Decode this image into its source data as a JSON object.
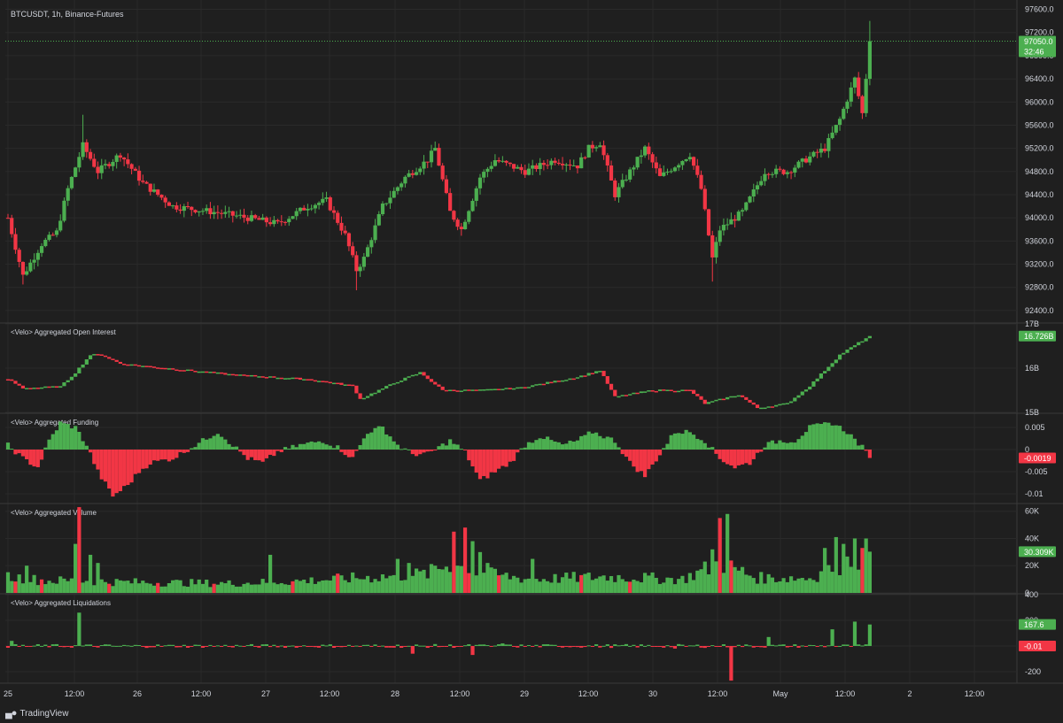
{
  "symbol_title": "BTCUSDT, 1h, Binance-Futures",
  "brand": "TradingView",
  "colors": {
    "up": "#4caf50",
    "down": "#f23645",
    "bg": "#1f1f1f",
    "grid": "#2a2a2a",
    "text": "#d1d4dc"
  },
  "time_axis": {
    "labels": [
      "25",
      "12:00",
      "26",
      "12:00",
      "27",
      "12:00",
      "28",
      "12:00",
      "29",
      "12:00",
      "30",
      "12:00",
      "May",
      "12:00",
      "2",
      "12:00"
    ]
  },
  "chart_data": [
    {
      "type": "candlestick",
      "title": "BTCUSDT, 1h, Binance-Futures",
      "ylim": [
        92200,
        97700
      ],
      "y_ticks": [
        "97600.0",
        "97200.0",
        "96800.0",
        "96400.0",
        "96000.0",
        "95600.0",
        "95200.0",
        "94800.0",
        "94400.0",
        "94000.0",
        "93600.0",
        "93200.0",
        "92800.0",
        "92400.0"
      ],
      "last_price": "97050.0",
      "countdown": "32:46",
      "waypoints": [
        [
          0,
          94000
        ],
        [
          4,
          93000
        ],
        [
          9,
          93550
        ],
        [
          13,
          93750
        ],
        [
          16,
          94500
        ],
        [
          20,
          95250
        ],
        [
          24,
          94800
        ],
        [
          30,
          95100
        ],
        [
          36,
          94600
        ],
        [
          44,
          94200
        ],
        [
          55,
          94100
        ],
        [
          64,
          94000
        ],
        [
          72,
          93900
        ],
        [
          80,
          94200
        ],
        [
          85,
          94300
        ],
        [
          90,
          93700
        ],
        [
          93,
          93100
        ],
        [
          95,
          93300
        ],
        [
          100,
          94200
        ],
        [
          106,
          94700
        ],
        [
          112,
          95000
        ],
        [
          114,
          95200
        ],
        [
          118,
          94100
        ],
        [
          121,
          93800
        ],
        [
          126,
          94700
        ],
        [
          130,
          95000
        ],
        [
          138,
          94800
        ],
        [
          146,
          95000
        ],
        [
          152,
          94900
        ],
        [
          155,
          95200
        ],
        [
          158,
          95300
        ],
        [
          162,
          94400
        ],
        [
          166,
          94800
        ],
        [
          170,
          95200
        ],
        [
          174,
          94700
        ],
        [
          182,
          95100
        ],
        [
          185,
          94500
        ],
        [
          188,
          93300
        ],
        [
          190,
          93800
        ],
        [
          196,
          94100
        ],
        [
          202,
          94800
        ],
        [
          208,
          94800
        ],
        [
          214,
          95050
        ],
        [
          218,
          95200
        ],
        [
          222,
          95700
        ],
        [
          226,
          96400
        ],
        [
          228,
          95800
        ],
        [
          230,
          97050
        ]
      ],
      "highs": {
        "230": 97400,
        "20": 95780
      },
      "lows": {
        "93": 92750,
        "188": 92900,
        "4": 92850
      }
    },
    {
      "type": "bar",
      "title": "<Velo> Aggregated Open Interest",
      "ylim": [
        15.0,
        17.0
      ],
      "y_ticks": [
        "17B",
        "16B",
        "15B"
      ],
      "last_value": "16.726B",
      "waypoints": [
        [
          0,
          15.75
        ],
        [
          4,
          15.55
        ],
        [
          14,
          15.58
        ],
        [
          18,
          15.9
        ],
        [
          22,
          16.3
        ],
        [
          25,
          16.3
        ],
        [
          30,
          16.1
        ],
        [
          42,
          16.0
        ],
        [
          60,
          15.85
        ],
        [
          80,
          15.75
        ],
        [
          92,
          15.6
        ],
        [
          94,
          15.3
        ],
        [
          104,
          15.7
        ],
        [
          110,
          15.9
        ],
        [
          116,
          15.5
        ],
        [
          126,
          15.5
        ],
        [
          136,
          15.55
        ],
        [
          146,
          15.7
        ],
        [
          152,
          15.8
        ],
        [
          158,
          15.95
        ],
        [
          162,
          15.35
        ],
        [
          172,
          15.5
        ],
        [
          182,
          15.5
        ],
        [
          186,
          15.2
        ],
        [
          195,
          15.4
        ],
        [
          200,
          15.1
        ],
        [
          208,
          15.2
        ],
        [
          214,
          15.6
        ],
        [
          222,
          16.3
        ],
        [
          230,
          16.73
        ]
      ]
    },
    {
      "type": "bar",
      "title": "<Velo> Aggregated Funding",
      "ylim": [
        -0.012,
        0.008
      ],
      "y_ticks": [
        "0.005",
        "0",
        "-0.005",
        "-0.01"
      ],
      "last_value": "-0.0019",
      "waypoints": [
        [
          0,
          0.001
        ],
        [
          4,
          -0.002
        ],
        [
          8,
          -0.004
        ],
        [
          11,
          0.002
        ],
        [
          14,
          0.006
        ],
        [
          18,
          0.005
        ],
        [
          21,
          0.001
        ],
        [
          24,
          -0.005
        ],
        [
          28,
          -0.0105
        ],
        [
          32,
          -0.008
        ],
        [
          35,
          -0.005
        ],
        [
          38,
          -0.003
        ],
        [
          44,
          -0.002
        ],
        [
          50,
          0.001
        ],
        [
          56,
          0.004
        ],
        [
          60,
          0.001
        ],
        [
          64,
          -0.002
        ],
        [
          68,
          -0.003
        ],
        [
          72,
          -0.0005
        ],
        [
          78,
          0.001
        ],
        [
          84,
          0.002
        ],
        [
          88,
          0.0005
        ],
        [
          92,
          -0.002
        ],
        [
          96,
          0.004
        ],
        [
          100,
          0.005
        ],
        [
          104,
          0.001
        ],
        [
          108,
          -0.001
        ],
        [
          112,
          -0.001
        ],
        [
          118,
          0.002
        ],
        [
          122,
          -0.0005
        ],
        [
          126,
          -0.007
        ],
        [
          130,
          -0.005
        ],
        [
          134,
          -0.003
        ],
        [
          138,
          0.001
        ],
        [
          142,
          0.003
        ],
        [
          148,
          0.001
        ],
        [
          152,
          0.002
        ],
        [
          156,
          0.004
        ],
        [
          162,
          0.002
        ],
        [
          166,
          -0.003
        ],
        [
          170,
          -0.006
        ],
        [
          174,
          -0.001
        ],
        [
          178,
          0.004
        ],
        [
          182,
          0.004
        ],
        [
          186,
          0.002
        ],
        [
          190,
          -0.002
        ],
        [
          194,
          -0.004
        ],
        [
          198,
          -0.003
        ],
        [
          202,
          0.001
        ],
        [
          206,
          0.002
        ],
        [
          210,
          0.002
        ],
        [
          214,
          0.005
        ],
        [
          220,
          0.006
        ],
        [
          224,
          0.004
        ],
        [
          228,
          0.0005
        ],
        [
          230,
          -0.0019
        ]
      ]
    },
    {
      "type": "bar",
      "title": "<Velo> Aggregated Volume",
      "ylim": [
        0,
        65000
      ],
      "y_ticks": [
        "60K",
        "40K",
        "20K",
        "0"
      ],
      "last_value": "30.309K",
      "waypoints": [
        [
          0,
          12000
        ],
        [
          10,
          9000
        ],
        [
          20,
          9000
        ],
        [
          30,
          8000
        ],
        [
          60,
          7000
        ],
        [
          80,
          9000
        ],
        [
          100,
          12000
        ],
        [
          112,
          14000
        ],
        [
          118,
          22000
        ],
        [
          124,
          15000
        ],
        [
          140,
          10000
        ],
        [
          160,
          12000
        ],
        [
          180,
          10000
        ],
        [
          190,
          22000
        ],
        [
          200,
          11000
        ],
        [
          214,
          11000
        ],
        [
          222,
          20000
        ],
        [
          230,
          30300
        ]
      ],
      "spikes": {
        "19": 63000,
        "18": 36000,
        "22": 28000,
        "5": 20000,
        "24": 22000,
        "119": 45000,
        "122": 48000,
        "124": 38000,
        "126": 30000,
        "128": 22000,
        "107": 22000,
        "114": 20000,
        "190": 55000,
        "192": 58000,
        "188": 32000,
        "218": 33000,
        "221": 41000,
        "223": 36000,
        "226": 40000,
        "228": 33000,
        "104": 25000,
        "70": 28000,
        "140": 25000
      },
      "reds": [
        2,
        9,
        19,
        27,
        40,
        55,
        76,
        88,
        119,
        122,
        123,
        131,
        153,
        166,
        190,
        193,
        228
      ]
    },
    {
      "type": "bar",
      "title": "<Velo> Aggregated Liquidations",
      "ylim": [
        -290,
        400
      ],
      "y_ticks": [
        "400",
        "200",
        "0",
        "-200"
      ],
      "last_positive": "167.6",
      "last_negative": "-0.01"
    }
  ]
}
